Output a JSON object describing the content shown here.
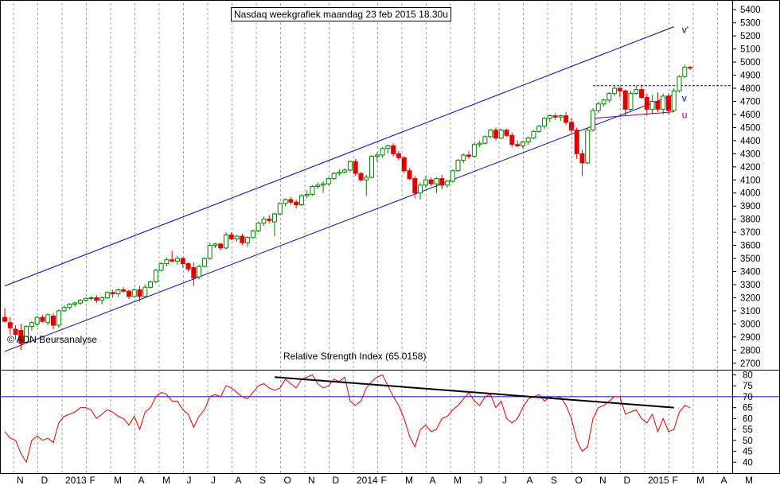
{
  "title": "Nasdaq weekgrafiek maandag 23 feb 2015 18.30u",
  "watermark": "© ADN Beursanalyse",
  "rsi_title": "Relative Strength Index (65.0158)",
  "colors": {
    "up": "#008000",
    "down": "#e00000",
    "channel": "#0000c0",
    "support": "#800080",
    "rsi_line": "#e00000",
    "trend": "#000000",
    "grid": "#a0a0a0"
  },
  "chart_data": [
    {
      "type": "candlestick",
      "title": "Nasdaq weekgrafiek maandag 23 feb 2015 18.30u",
      "ylim": [
        2650,
        5450
      ],
      "y_ticks": [
        2700,
        2800,
        2900,
        3000,
        3100,
        3200,
        3300,
        3400,
        3500,
        3600,
        3700,
        3800,
        3900,
        4000,
        4100,
        4200,
        4300,
        4400,
        4500,
        4600,
        4700,
        4800,
        4900,
        5000,
        5100,
        5200,
        5300,
        5400
      ],
      "x_labels": [
        "N",
        "D",
        "2013",
        "F",
        "M",
        "A",
        "M",
        "J",
        "J",
        "A",
        "S",
        "O",
        "N",
        "D",
        "2014",
        "F",
        "M",
        "A",
        "M",
        "J",
        "J",
        "A",
        "S",
        "O",
        "N",
        "D",
        "2015",
        "F",
        "M",
        "A",
        "M"
      ],
      "candles": [
        {
          "o": 3050,
          "h": 3120,
          "l": 3010,
          "c": 3020
        },
        {
          "o": 3010,
          "h": 3050,
          "l": 2920,
          "c": 2970
        },
        {
          "o": 2960,
          "h": 2990,
          "l": 2880,
          "c": 2920
        },
        {
          "o": 2950,
          "h": 3000,
          "l": 2800,
          "c": 2850
        },
        {
          "o": 2860,
          "h": 2990,
          "l": 2850,
          "c": 2980
        },
        {
          "o": 2980,
          "h": 3020,
          "l": 2950,
          "c": 3010
        },
        {
          "o": 3000,
          "h": 3060,
          "l": 2980,
          "c": 3050
        },
        {
          "o": 3050,
          "h": 3070,
          "l": 3010,
          "c": 3020
        },
        {
          "o": 3010,
          "h": 3080,
          "l": 2990,
          "c": 3070
        },
        {
          "o": 3060,
          "h": 3080,
          "l": 2960,
          "c": 2990
        },
        {
          "o": 2990,
          "h": 3110,
          "l": 2970,
          "c": 3100
        },
        {
          "o": 3100,
          "h": 3140,
          "l": 3090,
          "c": 3125
        },
        {
          "o": 3125,
          "h": 3160,
          "l": 3110,
          "c": 3150
        },
        {
          "o": 3150,
          "h": 3170,
          "l": 3130,
          "c": 3160
        },
        {
          "o": 3160,
          "h": 3190,
          "l": 3145,
          "c": 3180
        },
        {
          "o": 3180,
          "h": 3200,
          "l": 3170,
          "c": 3195
        },
        {
          "o": 3195,
          "h": 3210,
          "l": 3180,
          "c": 3200
        },
        {
          "o": 3200,
          "h": 3220,
          "l": 3160,
          "c": 3180
        },
        {
          "o": 3180,
          "h": 3210,
          "l": 3150,
          "c": 3200
        },
        {
          "o": 3200,
          "h": 3250,
          "l": 3190,
          "c": 3240
        },
        {
          "o": 3240,
          "h": 3260,
          "l": 3200,
          "c": 3230
        },
        {
          "o": 3230,
          "h": 3270,
          "l": 3210,
          "c": 3260
        },
        {
          "o": 3260,
          "h": 3280,
          "l": 3240,
          "c": 3250
        },
        {
          "o": 3250,
          "h": 3260,
          "l": 3190,
          "c": 3210
        },
        {
          "o": 3210,
          "h": 3270,
          "l": 3200,
          "c": 3260
        },
        {
          "o": 3260,
          "h": 3290,
          "l": 3170,
          "c": 3210
        },
        {
          "o": 3210,
          "h": 3300,
          "l": 3200,
          "c": 3280
        },
        {
          "o": 3280,
          "h": 3330,
          "l": 3270,
          "c": 3320
        },
        {
          "o": 3320,
          "h": 3420,
          "l": 3310,
          "c": 3410
        },
        {
          "o": 3410,
          "h": 3470,
          "l": 3400,
          "c": 3460
        },
        {
          "o": 3460,
          "h": 3510,
          "l": 3440,
          "c": 3490
        },
        {
          "o": 3490,
          "h": 3560,
          "l": 3470,
          "c": 3480
        },
        {
          "o": 3480,
          "h": 3520,
          "l": 3450,
          "c": 3500
        },
        {
          "o": 3500,
          "h": 3510,
          "l": 3430,
          "c": 3460
        },
        {
          "o": 3460,
          "h": 3470,
          "l": 3400,
          "c": 3420
        },
        {
          "o": 3430,
          "h": 3470,
          "l": 3290,
          "c": 3350
        },
        {
          "o": 3360,
          "h": 3450,
          "l": 3340,
          "c": 3440
        },
        {
          "o": 3440,
          "h": 3510,
          "l": 3430,
          "c": 3500
        },
        {
          "o": 3500,
          "h": 3620,
          "l": 3490,
          "c": 3600
        },
        {
          "o": 3600,
          "h": 3620,
          "l": 3580,
          "c": 3610
        },
        {
          "o": 3610,
          "h": 3620,
          "l": 3560,
          "c": 3580
        },
        {
          "o": 3580,
          "h": 3700,
          "l": 3570,
          "c": 3680
        },
        {
          "o": 3680,
          "h": 3700,
          "l": 3640,
          "c": 3650
        },
        {
          "o": 3650,
          "h": 3680,
          "l": 3630,
          "c": 3670
        },
        {
          "o": 3670,
          "h": 3690,
          "l": 3600,
          "c": 3620
        },
        {
          "o": 3620,
          "h": 3670,
          "l": 3590,
          "c": 3660
        },
        {
          "o": 3660,
          "h": 3720,
          "l": 3650,
          "c": 3710
        },
        {
          "o": 3710,
          "h": 3780,
          "l": 3700,
          "c": 3770
        },
        {
          "o": 3770,
          "h": 3820,
          "l": 3750,
          "c": 3800
        },
        {
          "o": 3800,
          "h": 3830,
          "l": 3770,
          "c": 3790
        },
        {
          "o": 3780,
          "h": 3850,
          "l": 3670,
          "c": 3840
        },
        {
          "o": 3840,
          "h": 3930,
          "l": 3830,
          "c": 3920
        },
        {
          "o": 3920,
          "h": 3960,
          "l": 3900,
          "c": 3950
        },
        {
          "o": 3950,
          "h": 3970,
          "l": 3910,
          "c": 3930
        },
        {
          "o": 3930,
          "h": 3950,
          "l": 3880,
          "c": 3910
        },
        {
          "o": 3910,
          "h": 3990,
          "l": 3900,
          "c": 3980
        },
        {
          "o": 3980,
          "h": 4020,
          "l": 3960,
          "c": 3990
        },
        {
          "o": 3990,
          "h": 4060,
          "l": 3980,
          "c": 4050
        },
        {
          "o": 4050,
          "h": 4080,
          "l": 4030,
          "c": 4060
        },
        {
          "o": 4060,
          "h": 4090,
          "l": 4000,
          "c": 4070
        },
        {
          "o": 4070,
          "h": 4120,
          "l": 4060,
          "c": 4110
        },
        {
          "o": 4110,
          "h": 4160,
          "l": 4100,
          "c": 4150
        },
        {
          "o": 4150,
          "h": 4180,
          "l": 4130,
          "c": 4160
        },
        {
          "o": 4160,
          "h": 4190,
          "l": 4150,
          "c": 4175
        },
        {
          "o": 4175,
          "h": 4250,
          "l": 4160,
          "c": 4240
        },
        {
          "o": 4240,
          "h": 4260,
          "l": 4130,
          "c": 4150
        },
        {
          "o": 4150,
          "h": 4160,
          "l": 4090,
          "c": 4100
        },
        {
          "o": 4100,
          "h": 4140,
          "l": 3980,
          "c": 4120
        },
        {
          "o": 4120,
          "h": 4290,
          "l": 4110,
          "c": 4280
        },
        {
          "o": 4280,
          "h": 4310,
          "l": 4240,
          "c": 4290
        },
        {
          "o": 4290,
          "h": 4350,
          "l": 4270,
          "c": 4340
        },
        {
          "o": 4340,
          "h": 4370,
          "l": 4300,
          "c": 4360
        },
        {
          "o": 4360,
          "h": 4380,
          "l": 4280,
          "c": 4300
        },
        {
          "o": 4300,
          "h": 4320,
          "l": 4250,
          "c": 4270
        },
        {
          "o": 4270,
          "h": 4280,
          "l": 4150,
          "c": 4170
        },
        {
          "o": 4170,
          "h": 4190,
          "l": 4100,
          "c": 4110
        },
        {
          "o": 4110,
          "h": 4130,
          "l": 3960,
          "c": 4000
        },
        {
          "o": 4000,
          "h": 4080,
          "l": 3950,
          "c": 4060
        },
        {
          "o": 4060,
          "h": 4130,
          "l": 4040,
          "c": 4100
        },
        {
          "o": 4100,
          "h": 4120,
          "l": 4050,
          "c": 4070
        },
        {
          "o": 4070,
          "h": 4120,
          "l": 4000,
          "c": 4110
        },
        {
          "o": 4110,
          "h": 4140,
          "l": 4030,
          "c": 4060
        },
        {
          "o": 4060,
          "h": 4100,
          "l": 4040,
          "c": 4090
        },
        {
          "o": 4090,
          "h": 4180,
          "l": 4080,
          "c": 4170
        },
        {
          "o": 4170,
          "h": 4260,
          "l": 4160,
          "c": 4250
        },
        {
          "o": 4250,
          "h": 4300,
          "l": 4230,
          "c": 4290
        },
        {
          "o": 4290,
          "h": 4320,
          "l": 4260,
          "c": 4280
        },
        {
          "o": 4280,
          "h": 4380,
          "l": 4270,
          "c": 4370
        },
        {
          "o": 4370,
          "h": 4400,
          "l": 4350,
          "c": 4380
        },
        {
          "o": 4380,
          "h": 4440,
          "l": 4370,
          "c": 4430
        },
        {
          "o": 4430,
          "h": 4490,
          "l": 4420,
          "c": 4480
        },
        {
          "o": 4480,
          "h": 4500,
          "l": 4400,
          "c": 4420
        },
        {
          "o": 4420,
          "h": 4490,
          "l": 4410,
          "c": 4480
        },
        {
          "o": 4480,
          "h": 4490,
          "l": 4430,
          "c": 4440
        },
        {
          "o": 4440,
          "h": 4460,
          "l": 4350,
          "c": 4370
        },
        {
          "o": 4370,
          "h": 4400,
          "l": 4350,
          "c": 4360
        },
        {
          "o": 4360,
          "h": 4400,
          "l": 4340,
          "c": 4390
        },
        {
          "o": 4390,
          "h": 4430,
          "l": 4370,
          "c": 4420
        },
        {
          "o": 4420,
          "h": 4480,
          "l": 4410,
          "c": 4470
        },
        {
          "o": 4470,
          "h": 4520,
          "l": 4460,
          "c": 4510
        },
        {
          "o": 4510,
          "h": 4580,
          "l": 4490,
          "c": 4570
        },
        {
          "o": 4570,
          "h": 4600,
          "l": 4540,
          "c": 4590
        },
        {
          "o": 4590,
          "h": 4610,
          "l": 4560,
          "c": 4580
        },
        {
          "o": 4580,
          "h": 4600,
          "l": 4550,
          "c": 4590
        },
        {
          "o": 4590,
          "h": 4620,
          "l": 4520,
          "c": 4540
        },
        {
          "o": 4540,
          "h": 4570,
          "l": 4460,
          "c": 4480
        },
        {
          "o": 4480,
          "h": 4500,
          "l": 4260,
          "c": 4300
        },
        {
          "o": 4300,
          "h": 4330,
          "l": 4130,
          "c": 4230
        },
        {
          "o": 4230,
          "h": 4500,
          "l": 4220,
          "c": 4480
        },
        {
          "o": 4480,
          "h": 4650,
          "l": 4470,
          "c": 4630
        },
        {
          "o": 4630,
          "h": 4700,
          "l": 4610,
          "c": 4680
        },
        {
          "o": 4680,
          "h": 4720,
          "l": 4660,
          "c": 4710
        },
        {
          "o": 4710,
          "h": 4770,
          "l": 4690,
          "c": 4760
        },
        {
          "o": 4760,
          "h": 4820,
          "l": 4740,
          "c": 4800
        },
        {
          "o": 4800,
          "h": 4810,
          "l": 4730,
          "c": 4780
        },
        {
          "o": 4780,
          "h": 4790,
          "l": 4590,
          "c": 4640
        },
        {
          "o": 4640,
          "h": 4780,
          "l": 4630,
          "c": 4760
        },
        {
          "o": 4760,
          "h": 4820,
          "l": 4750,
          "c": 4790
        },
        {
          "o": 4790,
          "h": 4830,
          "l": 4720,
          "c": 4730
        },
        {
          "o": 4730,
          "h": 4760,
          "l": 4590,
          "c": 4640
        },
        {
          "o": 4640,
          "h": 4750,
          "l": 4600,
          "c": 4700
        },
        {
          "o": 4700,
          "h": 4770,
          "l": 4620,
          "c": 4640
        },
        {
          "o": 4640,
          "h": 4760,
          "l": 4600,
          "c": 4740
        },
        {
          "o": 4740,
          "h": 4760,
          "l": 4600,
          "c": 4630
        },
        {
          "o": 4630,
          "h": 4800,
          "l": 4620,
          "c": 4780
        },
        {
          "o": 4780,
          "h": 4900,
          "l": 4770,
          "c": 4890
        },
        {
          "o": 4890,
          "h": 4980,
          "l": 4880,
          "c": 4960
        },
        {
          "o": 4960,
          "h": 4970,
          "l": 4940,
          "c": 4955
        }
      ],
      "lines": [
        {
          "name": "v'",
          "from": [
            0,
            3290
          ],
          "to": [
            124,
            5270
          ]
        },
        {
          "name": "v",
          "from": [
            0,
            2790
          ],
          "to": [
            124,
            4750
          ]
        },
        {
          "name": "u",
          "from": [
            109,
            4570
          ],
          "to": [
            124,
            4620
          ]
        }
      ],
      "horizontal_levels": [
        4820
      ]
    },
    {
      "type": "line",
      "title": "Relative Strength Index (65.0158)",
      "ylim": [
        35,
        82
      ],
      "y_ticks": [
        40,
        45,
        50,
        55,
        60,
        65,
        70,
        75,
        80
      ],
      "reference_level": 70,
      "values": [
        54,
        51,
        50,
        44,
        40,
        50,
        52,
        50,
        51,
        49,
        58,
        61,
        62,
        63,
        65,
        65,
        64,
        60,
        62,
        64,
        63,
        61,
        60,
        57,
        61,
        55,
        63,
        65,
        70,
        72,
        71,
        68,
        68,
        64,
        62,
        56,
        61,
        64,
        70,
        71,
        70,
        75,
        74,
        72,
        70,
        69,
        72,
        75,
        76,
        74,
        73,
        74,
        78,
        76,
        74,
        78,
        79,
        80,
        76,
        74,
        75,
        78,
        77,
        79,
        68,
        66,
        68,
        74,
        77,
        79,
        80,
        75,
        70,
        66,
        60,
        52,
        47,
        55,
        57,
        54,
        55,
        60,
        61,
        64,
        66,
        69,
        72,
        68,
        66,
        70,
        71,
        65,
        68,
        60,
        58,
        60,
        65,
        69,
        70,
        71,
        68,
        70,
        69,
        70,
        66,
        60,
        50,
        45,
        47,
        60,
        65,
        66,
        68,
        70,
        70,
        62,
        63,
        64,
        60,
        58,
        62,
        54,
        60,
        54,
        55,
        63,
        66,
        65
      ],
      "trendline": {
        "from": [
          50,
          79
        ],
        "to": [
          124,
          65
        ]
      }
    }
  ]
}
